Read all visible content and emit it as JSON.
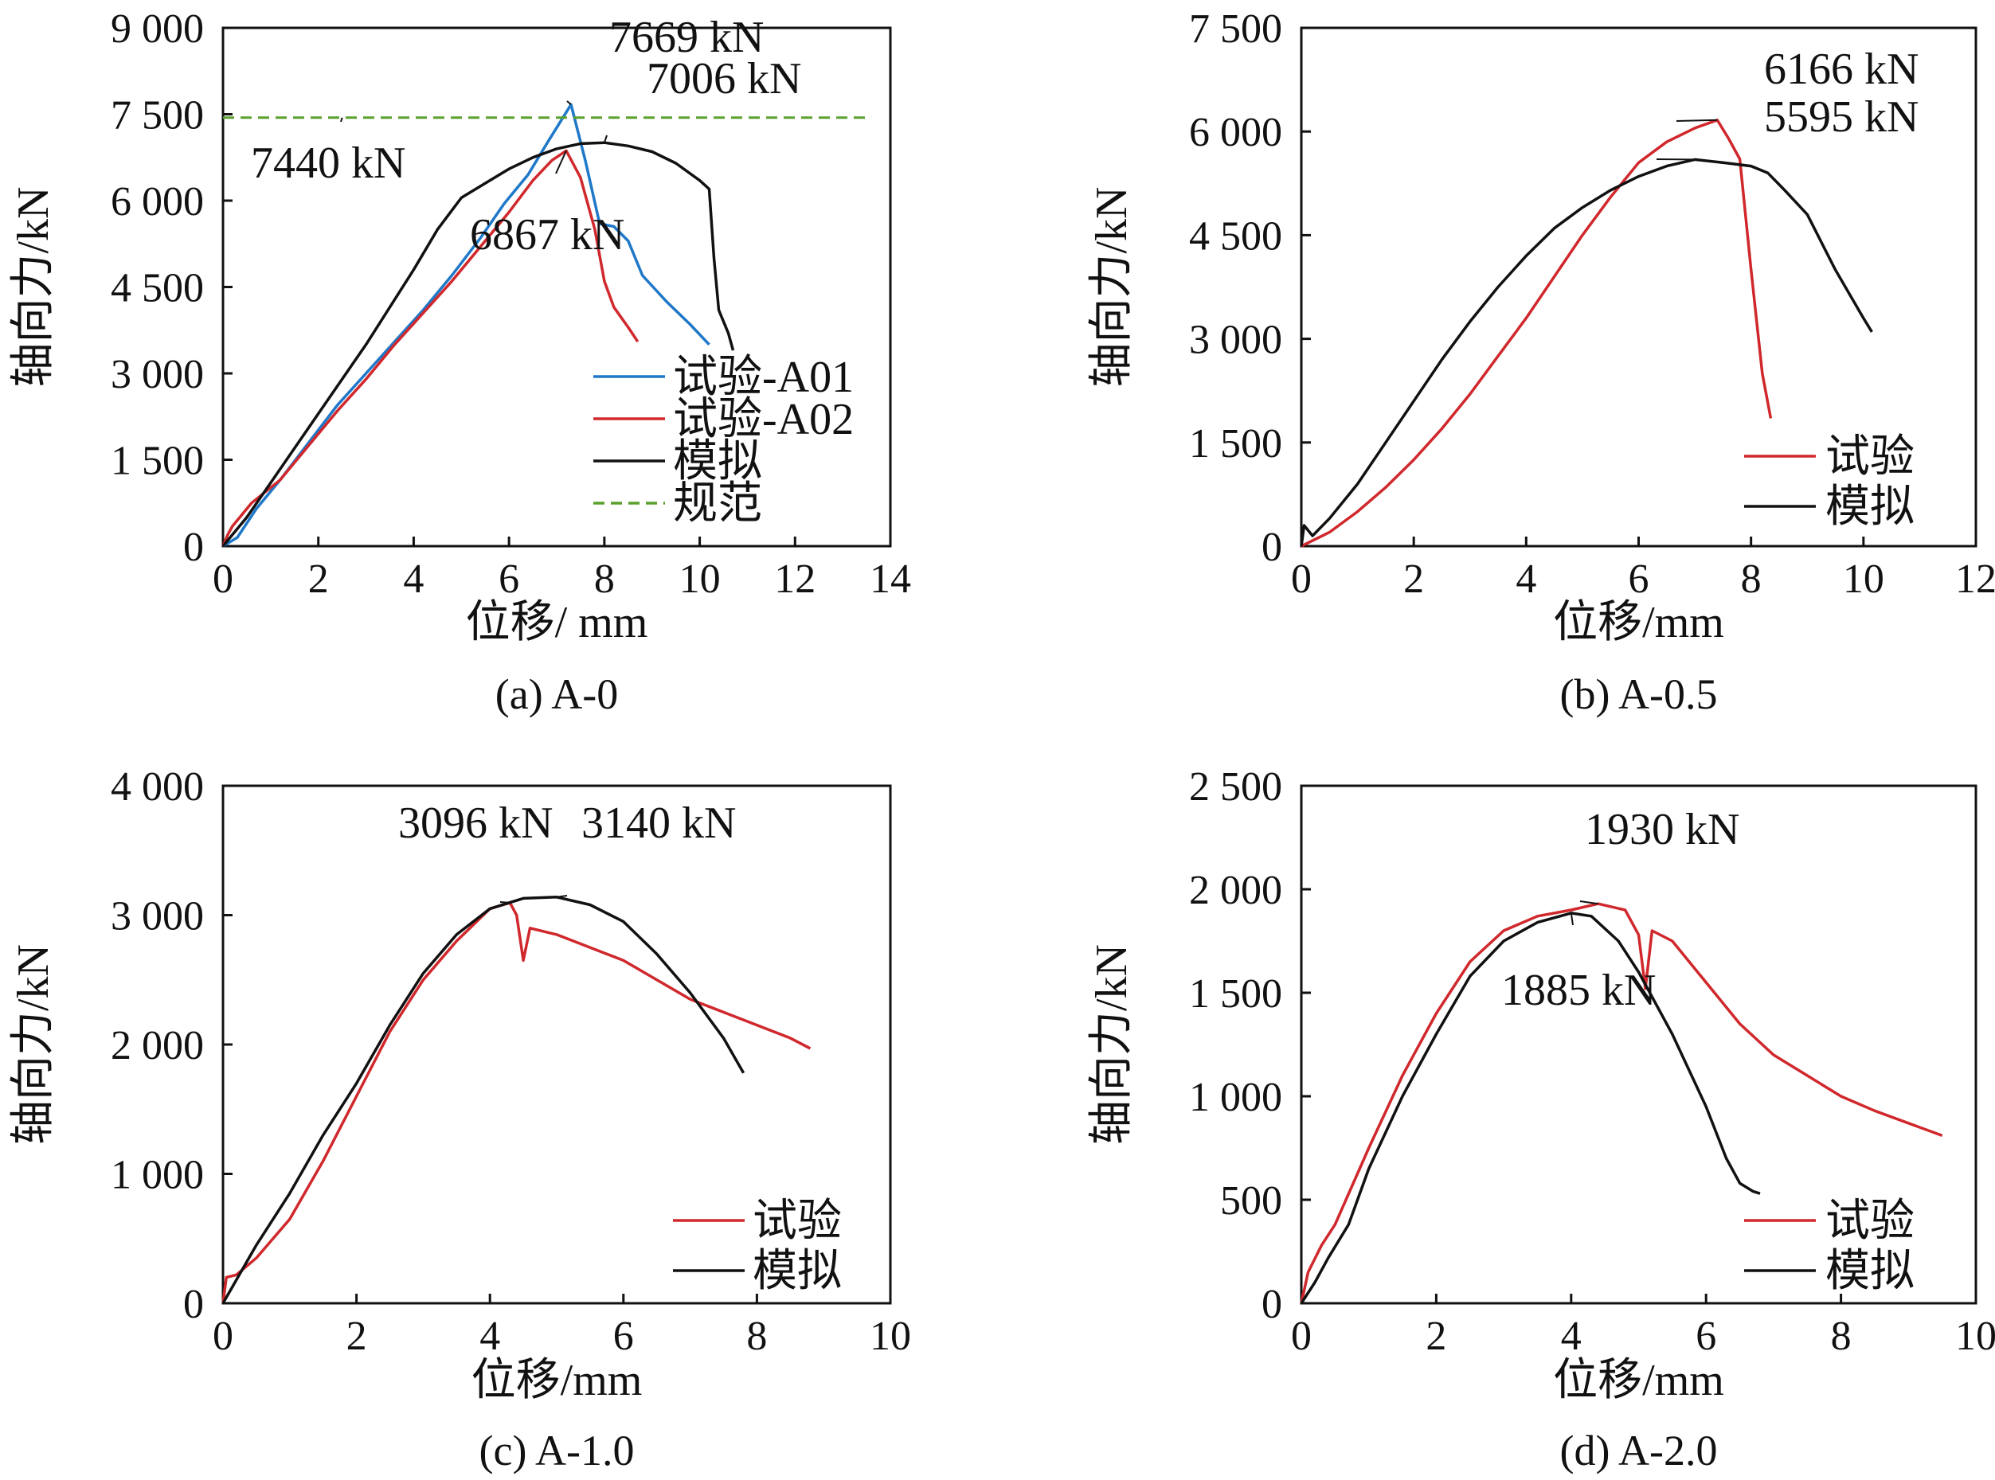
{
  "chart_data": [
    {
      "id": "a",
      "type": "line",
      "caption": "(a) A-0",
      "xlabel": "位移/ mm",
      "ylabel": "轴向力/kN",
      "xlim": [
        0,
        14
      ],
      "ylim": [
        0,
        9000
      ],
      "xticks": [
        0,
        2,
        4,
        6,
        8,
        10,
        12,
        14
      ],
      "xtick_labels": [
        "0",
        "2",
        "4",
        "6",
        "8",
        "10",
        "12",
        "14"
      ],
      "yticks": [
        0,
        1500,
        3000,
        4500,
        6000,
        7500,
        9000
      ],
      "ytick_labels": [
        "0",
        "1 500",
        "3 000",
        "4 500",
        "6 000",
        "7 500",
        "9 000"
      ],
      "legend_position": "bottom-right",
      "series": [
        {
          "name": "试验-A01",
          "color": "#1f78c8",
          "style": "solid",
          "points": [
            [
              0,
              0
            ],
            [
              0.3,
              150
            ],
            [
              0.7,
              650
            ],
            [
              1.2,
              1150
            ],
            [
              1.8,
              1800
            ],
            [
              2.4,
              2450
            ],
            [
              3.0,
              3000
            ],
            [
              3.6,
              3550
            ],
            [
              4.2,
              4100
            ],
            [
              4.8,
              4700
            ],
            [
              5.4,
              5350
            ],
            [
              5.9,
              5950
            ],
            [
              6.4,
              6450
            ],
            [
              6.8,
              7000
            ],
            [
              7.1,
              7400
            ],
            [
              7.3,
              7669
            ],
            [
              7.6,
              6700
            ],
            [
              7.9,
              5600
            ],
            [
              8.2,
              5550
            ],
            [
              8.5,
              5300
            ],
            [
              8.8,
              4700
            ],
            [
              9.3,
              4250
            ],
            [
              9.8,
              3850
            ],
            [
              10.2,
              3500
            ]
          ]
        },
        {
          "name": "试验-A02",
          "color": "#d0282c",
          "style": "solid",
          "points": [
            [
              0,
              0
            ],
            [
              0.1,
              200
            ],
            [
              0.2,
              350
            ],
            [
              0.6,
              750
            ],
            [
              1.2,
              1150
            ],
            [
              1.8,
              1750
            ],
            [
              2.4,
              2350
            ],
            [
              3.0,
              2900
            ],
            [
              3.6,
              3500
            ],
            [
              4.2,
              4050
            ],
            [
              4.8,
              4600
            ],
            [
              5.4,
              5200
            ],
            [
              6.0,
              5800
            ],
            [
              6.5,
              6350
            ],
            [
              6.9,
              6700
            ],
            [
              7.2,
              6867
            ],
            [
              7.5,
              6400
            ],
            [
              7.8,
              5500
            ],
            [
              8.0,
              4600
            ],
            [
              8.2,
              4150
            ],
            [
              8.5,
              3800
            ],
            [
              8.7,
              3550
            ]
          ]
        },
        {
          "name": "模拟",
          "color": "#111111",
          "style": "solid",
          "points": [
            [
              0,
              0
            ],
            [
              0.5,
              500
            ],
            [
              1.0,
              1100
            ],
            [
              1.5,
              1700
            ],
            [
              2.0,
              2300
            ],
            [
              2.5,
              2900
            ],
            [
              3.0,
              3500
            ],
            [
              3.5,
              4150
            ],
            [
              4.0,
              4800
            ],
            [
              4.5,
              5500
            ],
            [
              5.0,
              6050
            ],
            [
              5.5,
              6300
            ],
            [
              6.0,
              6550
            ],
            [
              6.5,
              6750
            ],
            [
              7.0,
              6900
            ],
            [
              7.5,
              6990
            ],
            [
              8.0,
              7006
            ],
            [
              8.5,
              6950
            ],
            [
              9.0,
              6850
            ],
            [
              9.5,
              6650
            ],
            [
              10.0,
              6350
            ],
            [
              10.2,
              6200
            ],
            [
              10.3,
              5000
            ],
            [
              10.4,
              4100
            ],
            [
              10.6,
              3700
            ],
            [
              10.7,
              3400
            ]
          ]
        },
        {
          "name": "规范",
          "color": "#5aa02c",
          "style": "dashed",
          "points": [
            [
              0,
              7440
            ],
            [
              13.6,
              7440
            ]
          ]
        }
      ],
      "annotations": [
        {
          "text": "7669 kN",
          "x": 7.3,
          "y": 7669
        },
        {
          "text": "7006 kN",
          "x": 8.0,
          "y": 7006
        },
        {
          "text": "7440 kN",
          "x": 2.5,
          "y": 7440
        },
        {
          "text": "6867 kN",
          "x": 7.2,
          "y": 6867
        }
      ]
    },
    {
      "id": "b",
      "type": "line",
      "caption": "(b) A-0.5",
      "xlabel": "位移/mm",
      "ylabel": "轴向力/kN",
      "xlim": [
        0,
        12
      ],
      "ylim": [
        0,
        7500
      ],
      "xticks": [
        0,
        2,
        4,
        6,
        8,
        10,
        12
      ],
      "xtick_labels": [
        "0",
        "2",
        "4",
        "6",
        "8",
        "10",
        "12"
      ],
      "yticks": [
        0,
        1500,
        3000,
        4500,
        6000,
        7500
      ],
      "ytick_labels": [
        "0",
        "1 500",
        "3 000",
        "4 500",
        "6 000",
        "7 500"
      ],
      "legend_position": "bottom-right",
      "series": [
        {
          "name": "试验",
          "color": "#d0282c",
          "style": "solid",
          "points": [
            [
              0,
              0
            ],
            [
              0.5,
              200
            ],
            [
              1,
              500
            ],
            [
              1.5,
              850
            ],
            [
              2,
              1250
            ],
            [
              2.5,
              1700
            ],
            [
              3,
              2200
            ],
            [
              3.5,
              2750
            ],
            [
              4,
              3300
            ],
            [
              4.5,
              3900
            ],
            [
              5,
              4500
            ],
            [
              5.5,
              5050
            ],
            [
              6,
              5550
            ],
            [
              6.5,
              5850
            ],
            [
              7,
              6050
            ],
            [
              7.4,
              6166
            ],
            [
              7.6,
              5900
            ],
            [
              7.8,
              5600
            ],
            [
              8.0,
              4000
            ],
            [
              8.2,
              2500
            ],
            [
              8.35,
              1850
            ]
          ]
        },
        {
          "name": "模拟",
          "color": "#111111",
          "style": "solid",
          "points": [
            [
              0,
              0
            ],
            [
              0.05,
              300
            ],
            [
              0.2,
              150
            ],
            [
              0.5,
              400
            ],
            [
              1,
              900
            ],
            [
              1.5,
              1500
            ],
            [
              2,
              2100
            ],
            [
              2.5,
              2700
            ],
            [
              3,
              3250
            ],
            [
              3.5,
              3750
            ],
            [
              4,
              4200
            ],
            [
              4.5,
              4600
            ],
            [
              5,
              4900
            ],
            [
              5.5,
              5150
            ],
            [
              6,
              5350
            ],
            [
              6.5,
              5500
            ],
            [
              7,
              5595
            ],
            [
              7.5,
              5550
            ],
            [
              8,
              5500
            ],
            [
              8.3,
              5400
            ],
            [
              8.6,
              5150
            ],
            [
              9,
              4800
            ],
            [
              9.5,
              4000
            ],
            [
              10,
              3300
            ],
            [
              10.15,
              3100
            ]
          ]
        }
      ],
      "annotations": [
        {
          "text": "6166 kN",
          "x": 7.4,
          "y": 6166
        },
        {
          "text": "5595 kN",
          "x": 7.0,
          "y": 5595
        }
      ]
    },
    {
      "id": "c",
      "type": "line",
      "caption": "(c) A-1.0",
      "xlabel": "位移/mm",
      "ylabel": "轴向力/kN",
      "xlim": [
        0,
        10
      ],
      "ylim": [
        0,
        4000
      ],
      "xticks": [
        0,
        2,
        4,
        6,
        8,
        10
      ],
      "xtick_labels": [
        "0",
        "2",
        "4",
        "6",
        "8",
        "10"
      ],
      "yticks": [
        0,
        1000,
        2000,
        3000,
        4000
      ],
      "ytick_labels": [
        "0",
        "1 000",
        "2 000",
        "3 000",
        "4 000"
      ],
      "legend_position": "bottom-right",
      "series": [
        {
          "name": "试验",
          "color": "#d0282c",
          "style": "solid",
          "points": [
            [
              0,
              0
            ],
            [
              0.05,
              200
            ],
            [
              0.2,
              220
            ],
            [
              0.5,
              350
            ],
            [
              1,
              650
            ],
            [
              1.5,
              1100
            ],
            [
              2,
              1600
            ],
            [
              2.5,
              2100
            ],
            [
              3,
              2500
            ],
            [
              3.5,
              2800
            ],
            [
              4,
              3050
            ],
            [
              4.3,
              3096
            ],
            [
              4.4,
              3000
            ],
            [
              4.5,
              2650
            ],
            [
              4.6,
              2900
            ],
            [
              5,
              2850
            ],
            [
              5.5,
              2750
            ],
            [
              6,
              2650
            ],
            [
              6.5,
              2500
            ],
            [
              7,
              2350
            ],
            [
              7.5,
              2250
            ],
            [
              8,
              2150
            ],
            [
              8.5,
              2050
            ],
            [
              8.8,
              1970
            ]
          ]
        },
        {
          "name": "模拟",
          "color": "#111111",
          "style": "solid",
          "points": [
            [
              0,
              0
            ],
            [
              0.5,
              450
            ],
            [
              1,
              850
            ],
            [
              1.5,
              1300
            ],
            [
              2,
              1700
            ],
            [
              2.5,
              2150
            ],
            [
              3,
              2550
            ],
            [
              3.5,
              2850
            ],
            [
              4,
              3050
            ],
            [
              4.5,
              3130
            ],
            [
              5,
              3140
            ],
            [
              5.5,
              3080
            ],
            [
              6,
              2950
            ],
            [
              6.5,
              2700
            ],
            [
              7,
              2400
            ],
            [
              7.5,
              2050
            ],
            [
              7.8,
              1780
            ]
          ]
        }
      ],
      "annotations": [
        {
          "text": "3096 kN",
          "x": 4.3,
          "y": 3096
        },
        {
          "text": "3140 kN",
          "x": 5.0,
          "y": 3140
        }
      ]
    },
    {
      "id": "d",
      "type": "line",
      "caption": "(d) A-2.0",
      "xlabel": "位移/mm",
      "ylabel": "轴向力/kN",
      "xlim": [
        0,
        10
      ],
      "ylim": [
        0,
        2500
      ],
      "xticks": [
        0,
        2,
        4,
        6,
        8,
        10
      ],
      "xtick_labels": [
        "0",
        "2",
        "4",
        "6",
        "8",
        "10"
      ],
      "yticks": [
        0,
        500,
        1000,
        1500,
        2000,
        2500
      ],
      "ytick_labels": [
        "0",
        "500",
        "1 000",
        "1 500",
        "2 000",
        "2 500"
      ],
      "legend_position": "bottom-right",
      "series": [
        {
          "name": "试验",
          "color": "#d0282c",
          "style": "solid",
          "points": [
            [
              0,
              0
            ],
            [
              0.1,
              150
            ],
            [
              0.3,
              280
            ],
            [
              0.5,
              380
            ],
            [
              1,
              750
            ],
            [
              1.5,
              1100
            ],
            [
              2,
              1400
            ],
            [
              2.5,
              1650
            ],
            [
              3,
              1800
            ],
            [
              3.5,
              1870
            ],
            [
              4,
              1900
            ],
            [
              4.4,
              1930
            ],
            [
              4.8,
              1900
            ],
            [
              5,
              1780
            ],
            [
              5.1,
              1520
            ],
            [
              5.2,
              1800
            ],
            [
              5.5,
              1750
            ],
            [
              6,
              1550
            ],
            [
              6.5,
              1350
            ],
            [
              7,
              1200
            ],
            [
              7.5,
              1100
            ],
            [
              8,
              1000
            ],
            [
              8.5,
              930
            ],
            [
              9,
              870
            ],
            [
              9.5,
              810
            ]
          ]
        },
        {
          "name": "模拟",
          "color": "#111111",
          "style": "solid",
          "points": [
            [
              0,
              0
            ],
            [
              0.2,
              100
            ],
            [
              0.4,
              220
            ],
            [
              0.7,
              380
            ],
            [
              1,
              650
            ],
            [
              1.5,
              1000
            ],
            [
              2,
              1300
            ],
            [
              2.5,
              1580
            ],
            [
              3,
              1750
            ],
            [
              3.5,
              1840
            ],
            [
              4,
              1885
            ],
            [
              4.3,
              1870
            ],
            [
              4.7,
              1750
            ],
            [
              5,
              1600
            ],
            [
              5.5,
              1300
            ],
            [
              6,
              950
            ],
            [
              6.3,
              700
            ],
            [
              6.5,
              580
            ],
            [
              6.7,
              540
            ],
            [
              6.8,
              530
            ]
          ]
        }
      ],
      "annotations": [
        {
          "text": "1930 kN",
          "x": 4.4,
          "y": 1930
        },
        {
          "text": "1885 kN",
          "x": 4.0,
          "y": 1885
        }
      ]
    }
  ]
}
